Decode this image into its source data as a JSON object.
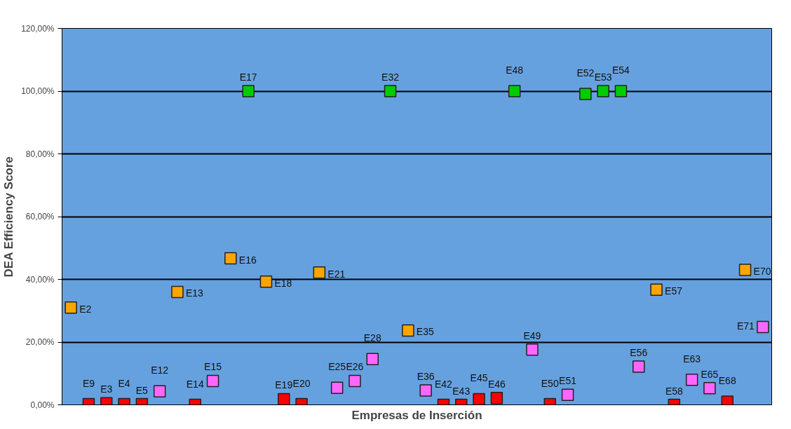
{
  "chart_data": {
    "type": "scatter",
    "xlabel": "Empresas de Inserción",
    "ylabel": "DEA Efficiency Score",
    "categories": [
      null,
      null,
      null,
      null,
      null,
      null,
      null,
      null,
      null,
      null,
      null,
      null,
      null,
      null,
      null,
      null,
      null,
      null,
      null,
      null,
      null,
      null,
      null,
      null,
      null,
      null,
      null,
      null,
      null,
      null,
      null,
      null,
      null,
      null,
      null,
      null,
      null,
      null,
      null,
      null
    ],
    "series": [
      {
        "color": "#ff0000",
        "values": [
          null,
          0.2,
          0.5,
          0.2,
          0.2,
          null,
          null,
          0,
          null,
          null,
          null,
          null,
          1.8,
          0.2,
          null,
          null,
          null,
          null,
          null,
          null,
          null,
          0,
          0,
          1.8,
          2.2,
          null,
          null,
          0.2,
          null,
          null,
          null,
          null,
          null,
          null,
          0,
          null,
          null,
          1.0,
          null,
          null
        ],
        "value_labels": [
          null,
          "E9",
          "E3",
          "E4",
          "E5",
          null,
          null,
          "E14",
          null,
          null,
          null,
          null,
          "E19",
          "E20",
          null,
          null,
          null,
          null,
          null,
          null,
          null,
          "E42",
          "E43",
          "E45",
          "E46",
          null,
          null,
          "E50",
          null,
          null,
          null,
          null,
          null,
          null,
          "E58",
          null,
          null,
          "E68",
          null,
          null
        ]
      },
      {
        "color": "#ff66ff",
        "values": [
          null,
          null,
          null,
          null,
          null,
          4.3,
          null,
          null,
          7.6,
          null,
          null,
          null,
          null,
          null,
          null,
          5.4,
          7.6,
          14.6,
          null,
          null,
          4.6,
          null,
          null,
          null,
          null,
          null,
          17.6,
          null,
          3.2,
          null,
          null,
          null,
          12.2,
          null,
          null,
          8.0,
          5.3,
          null,
          null,
          24.8
        ],
        "value_labels": [
          null,
          null,
          null,
          null,
          null,
          "E12",
          null,
          null,
          "E15",
          null,
          null,
          null,
          null,
          null,
          null,
          "E25",
          "E26",
          "E28",
          null,
          null,
          "E36",
          null,
          null,
          null,
          null,
          null,
          "E49",
          null,
          "E51",
          null,
          null,
          null,
          "E56",
          null,
          null,
          "E63",
          "E65",
          null,
          null,
          "E71"
        ]
      },
      {
        "color": "#ffa500",
        "values": [
          31,
          null,
          null,
          null,
          null,
          null,
          36,
          null,
          null,
          46.7,
          null,
          39.3,
          null,
          null,
          42.2,
          null,
          null,
          null,
          null,
          23.7,
          null,
          null,
          null,
          null,
          null,
          null,
          null,
          null,
          null,
          null,
          null,
          null,
          null,
          36.7,
          null,
          null,
          null,
          null,
          43.0,
          null
        ],
        "value_labels": [
          "E2",
          null,
          null,
          null,
          null,
          null,
          "E13",
          null,
          null,
          "E16",
          null,
          "E18",
          null,
          null,
          "E21",
          null,
          null,
          null,
          null,
          "E35",
          null,
          null,
          null,
          null,
          null,
          null,
          null,
          null,
          null,
          null,
          null,
          null,
          null,
          "E57",
          null,
          null,
          null,
          null,
          "E70",
          null
        ]
      },
      {
        "color": "#00cc00",
        "values": [
          null,
          null,
          null,
          null,
          null,
          null,
          null,
          null,
          null,
          null,
          100,
          null,
          null,
          null,
          null,
          null,
          null,
          null,
          100,
          null,
          null,
          null,
          null,
          null,
          null,
          100,
          null,
          null,
          null,
          99.1,
          100,
          100,
          null,
          null,
          null,
          null,
          null,
          null,
          null,
          null
        ],
        "value_labels": [
          null,
          null,
          null,
          null,
          null,
          null,
          null,
          null,
          null,
          null,
          "E17",
          null,
          null,
          null,
          null,
          null,
          null,
          null,
          "E32",
          null,
          null,
          null,
          null,
          null,
          null,
          "E48",
          null,
          null,
          null,
          "E52",
          "E53",
          "E54",
          null,
          null,
          null,
          null,
          null,
          null,
          null,
          null
        ]
      }
    ],
    "ylim": [
      0,
      120
    ],
    "yticks": [
      {
        "value": 0,
        "label": "0,00%"
      },
      {
        "value": 20,
        "label": "20,00%"
      },
      {
        "value": 40,
        "label": "40,00%"
      },
      {
        "value": 60,
        "label": "60,00%"
      },
      {
        "value": 80,
        "label": "80,00%"
      },
      {
        "value": 100,
        "label": "100,00%"
      },
      {
        "value": 120,
        "label": "120,00%"
      }
    ],
    "grid": "y",
    "marker": "square",
    "tick_labels": "y"
  }
}
